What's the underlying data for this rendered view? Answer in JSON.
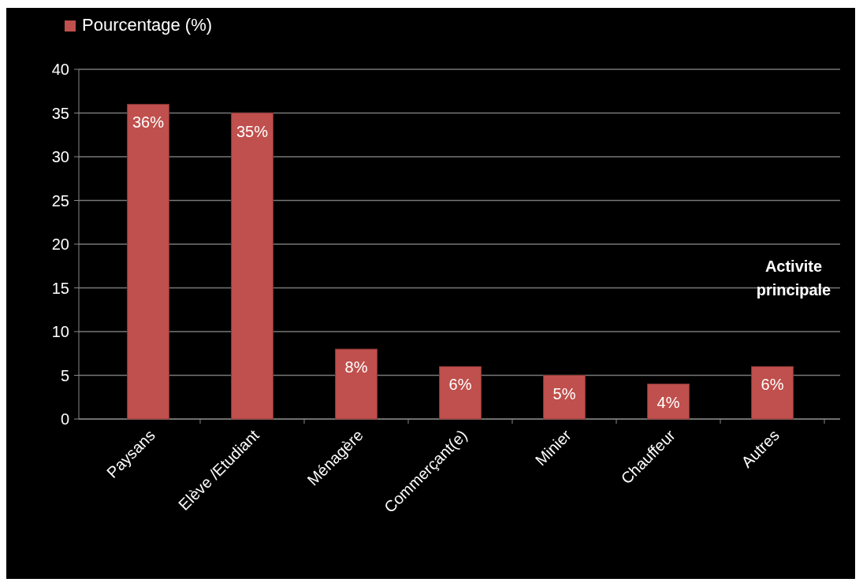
{
  "chart_data": {
    "type": "bar",
    "categories": [
      "Paysans",
      "Elève /Etudiant",
      "Ménagère",
      "Commerçant(e)",
      "Minier",
      "Chauffeur",
      "Autres"
    ],
    "series": [
      {
        "name": "Pourcentage (%)",
        "color": "#c0504d",
        "values": [
          36,
          35,
          8,
          6,
          5,
          4,
          6
        ],
        "value_labels": [
          "36%",
          "35%",
          "8%",
          "6%",
          "5%",
          "4%",
          "6%"
        ]
      }
    ],
    "ylim": [
      0,
      40
    ],
    "yticks": [
      0,
      5,
      10,
      15,
      20,
      25,
      30,
      35,
      40
    ],
    "grid": "y",
    "legend": "top left",
    "annotations": [
      "Activite principale"
    ]
  }
}
